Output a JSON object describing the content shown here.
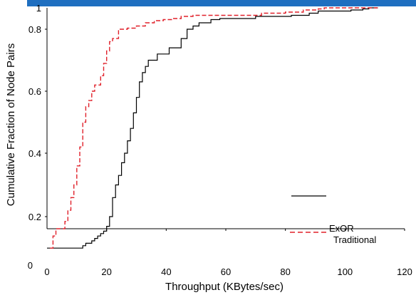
{
  "chart_data": {
    "type": "line",
    "xlabel": "Throughput  (KBytes/sec)",
    "ylabel": "Cumulative  Fraction of Node  Pairs",
    "xlim": [
      0,
      120
    ],
    "ylim": [
      0,
      1
    ],
    "x_ticks": [
      0,
      20,
      40,
      60,
      80,
      100,
      120
    ],
    "x_tick_labels": [
      "0",
      "20",
      "40",
      "60",
      "80",
      "100",
      "120"
    ],
    "y_tick_labels": [
      {
        "value": 0,
        "label": "0"
      },
      {
        "value": 0.2,
        "label": "0.2"
      },
      {
        "value": 0.4,
        "label": "0.4"
      },
      {
        "value": 0.6,
        "label": "0.6"
      },
      {
        "value": 0.8,
        "label": "0.8"
      },
      {
        "value": 1,
        "label": "1"
      }
    ],
    "legend": [
      "ExOR",
      "Traditional"
    ],
    "grid": false,
    "series": [
      {
        "name": "ExOR",
        "color": "#000000",
        "dash": "solid",
        "points": [
          [
            0,
            0.07
          ],
          [
            12,
            0.07
          ],
          [
            12,
            0.08
          ],
          [
            13,
            0.08
          ],
          [
            13,
            0.09
          ],
          [
            15,
            0.09
          ],
          [
            15,
            0.1
          ],
          [
            16,
            0.1
          ],
          [
            16,
            0.11
          ],
          [
            17,
            0.11
          ],
          [
            17,
            0.12
          ],
          [
            18,
            0.12
          ],
          [
            18,
            0.13
          ],
          [
            19,
            0.13
          ],
          [
            19,
            0.14
          ],
          [
            20,
            0.14
          ],
          [
            20,
            0.16
          ],
          [
            21,
            0.16
          ],
          [
            21,
            0.2
          ],
          [
            22,
            0.2
          ],
          [
            22,
            0.26
          ],
          [
            23,
            0.26
          ],
          [
            23,
            0.3
          ],
          [
            24,
            0.3
          ],
          [
            24,
            0.33
          ],
          [
            25,
            0.33
          ],
          [
            25,
            0.37
          ],
          [
            26,
            0.37
          ],
          [
            26,
            0.4
          ],
          [
            27,
            0.4
          ],
          [
            27,
            0.44
          ],
          [
            28,
            0.44
          ],
          [
            28,
            0.48
          ],
          [
            29,
            0.48
          ],
          [
            29,
            0.53
          ],
          [
            30,
            0.53
          ],
          [
            30,
            0.58
          ],
          [
            31,
            0.58
          ],
          [
            31,
            0.63
          ],
          [
            32,
            0.63
          ],
          [
            32,
            0.66
          ],
          [
            33,
            0.66
          ],
          [
            33,
            0.68
          ],
          [
            34,
            0.68
          ],
          [
            34,
            0.7
          ],
          [
            37,
            0.7
          ],
          [
            37,
            0.72
          ],
          [
            41,
            0.72
          ],
          [
            41,
            0.74
          ],
          [
            45,
            0.74
          ],
          [
            45,
            0.77
          ],
          [
            47,
            0.77
          ],
          [
            47,
            0.8
          ],
          [
            49,
            0.8
          ],
          [
            49,
            0.83
          ],
          [
            51,
            0.83
          ],
          [
            51,
            0.86
          ],
          [
            55,
            0.86
          ],
          [
            55,
            0.89
          ],
          [
            58,
            0.89
          ],
          [
            58,
            0.9
          ],
          [
            70,
            0.9
          ],
          [
            70,
            0.92
          ],
          [
            82,
            0.92
          ],
          [
            82,
            0.93
          ],
          [
            88,
            0.93
          ],
          [
            88,
            0.95
          ],
          [
            91,
            0.95
          ],
          [
            91,
            0.97
          ],
          [
            102,
            0.97
          ],
          [
            102,
            0.98
          ],
          [
            106,
            0.98
          ],
          [
            106,
            0.99
          ],
          [
            108,
            0.99
          ],
          [
            108,
            1.0
          ],
          [
            111,
            1.0
          ]
        ]
      },
      {
        "name": "Traditional",
        "color": "#e0202a",
        "dash": "dashed",
        "points": [
          [
            1,
            0.07
          ],
          [
            2,
            0.07
          ],
          [
            2,
            0.12
          ],
          [
            3,
            0.12
          ],
          [
            3,
            0.15
          ],
          [
            6,
            0.15
          ],
          [
            6,
            0.18
          ],
          [
            7,
            0.18
          ],
          [
            7,
            0.22
          ],
          [
            8,
            0.22
          ],
          [
            8,
            0.26
          ],
          [
            9,
            0.26
          ],
          [
            9,
            0.3
          ],
          [
            10,
            0.3
          ],
          [
            10,
            0.36
          ],
          [
            11,
            0.36
          ],
          [
            11,
            0.42
          ],
          [
            12,
            0.42
          ],
          [
            12,
            0.5
          ],
          [
            13,
            0.5
          ],
          [
            13,
            0.55
          ],
          [
            14,
            0.55
          ],
          [
            14,
            0.57
          ],
          [
            15,
            0.57
          ],
          [
            15,
            0.6
          ],
          [
            16,
            0.6
          ],
          [
            16,
            0.62
          ],
          [
            18,
            0.62
          ],
          [
            18,
            0.65
          ],
          [
            19,
            0.65
          ],
          [
            19,
            0.69
          ],
          [
            20,
            0.69
          ],
          [
            20,
            0.73
          ],
          [
            21,
            0.73
          ],
          [
            21,
            0.76
          ],
          [
            22,
            0.76
          ],
          [
            22,
            0.77
          ],
          [
            24,
            0.77
          ],
          [
            24,
            0.8
          ],
          [
            27,
            0.8
          ],
          [
            27,
            0.81
          ],
          [
            30,
            0.81
          ],
          [
            30,
            0.83
          ],
          [
            33,
            0.83
          ],
          [
            33,
            0.86
          ],
          [
            36,
            0.86
          ],
          [
            36,
            0.88
          ],
          [
            39,
            0.88
          ],
          [
            39,
            0.89
          ],
          [
            42,
            0.89
          ],
          [
            42,
            0.9
          ],
          [
            45,
            0.9
          ],
          [
            45,
            0.92
          ],
          [
            49,
            0.92
          ],
          [
            49,
            0.93
          ],
          [
            72,
            0.93
          ],
          [
            72,
            0.95
          ],
          [
            80,
            0.95
          ],
          [
            80,
            0.96
          ],
          [
            86,
            0.96
          ],
          [
            86,
            0.98
          ],
          [
            91,
            0.98
          ],
          [
            91,
            0.99
          ],
          [
            93,
            0.99
          ],
          [
            93,
            1.0
          ],
          [
            111,
            1.0
          ]
        ]
      }
    ]
  }
}
